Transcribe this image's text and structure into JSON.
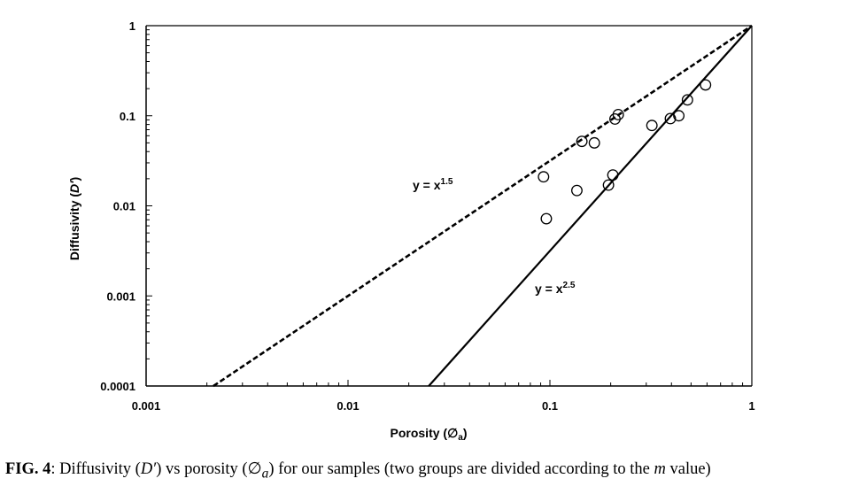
{
  "chart_data": {
    "type": "scatter",
    "xlabel": {
      "text": "Porosity (∅",
      "sub": "a",
      "close": ")"
    },
    "ylabel": {
      "text": "Diffusivity (",
      "italic": "D'",
      "close": ")"
    },
    "xscale": "log",
    "yscale": "log",
    "xlim": [
      0.001,
      1
    ],
    "ylim": [
      0.0001,
      1
    ],
    "x_ticks": [
      {
        "value": 0.001,
        "label": "0.001"
      },
      {
        "value": 0.01,
        "label": "0.01"
      },
      {
        "value": 0.1,
        "label": "0.1"
      },
      {
        "value": 1,
        "label": "1"
      }
    ],
    "y_ticks": [
      {
        "value": 0.0001,
        "label": "0.0001"
      },
      {
        "value": 0.001,
        "label": "0.001"
      },
      {
        "value": 0.01,
        "label": "0.01"
      },
      {
        "value": 0.1,
        "label": "0.1"
      },
      {
        "value": 1,
        "label": "1"
      }
    ],
    "grid": false,
    "series": [
      {
        "marker": "open-circle",
        "points": [
          [
            0.093,
            0.021
          ],
          [
            0.096,
            0.0072
          ],
          [
            0.136,
            0.0148
          ],
          [
            0.144,
            0.052
          ],
          [
            0.166,
            0.05
          ],
          [
            0.195,
            0.017
          ],
          [
            0.205,
            0.022
          ],
          [
            0.21,
            0.092
          ],
          [
            0.218,
            0.103
          ],
          [
            0.32,
            0.078
          ],
          [
            0.395,
            0.093
          ],
          [
            0.435,
            0.1
          ],
          [
            0.48,
            0.15
          ],
          [
            0.59,
            0.22
          ]
        ]
      }
    ],
    "lines": [
      {
        "exponent": 1.5,
        "style": "dashed",
        "label_base": "y = x",
        "label_exp": "1.5"
      },
      {
        "exponent": 2.5,
        "style": "solid",
        "label_base": "y = x",
        "label_exp": "2.5"
      }
    ]
  },
  "caption": {
    "fig_label": "FIG. 4",
    "text_1": ": Diffusivity (",
    "d_prime": "D′",
    "text_2": ") vs porosity (",
    "phi": "∅",
    "phi_sub": "a",
    "text_3": ") for our samples (two groups are divided according to the ",
    "m": "m",
    "text_4": " value)"
  }
}
